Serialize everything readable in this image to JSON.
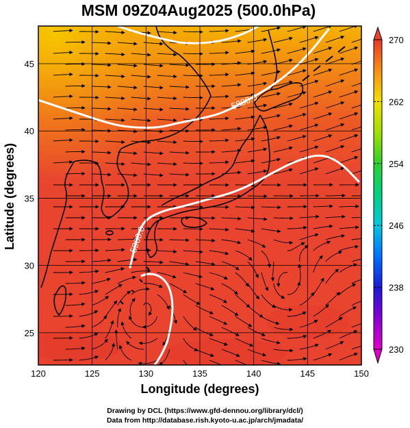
{
  "title": "MSM 09Z04Aug2025 (500.0hPa)",
  "x_axis": {
    "label": "Longitude (degrees)",
    "ticks": [
      "120",
      "125",
      "130",
      "135",
      "140",
      "145",
      "150"
    ]
  },
  "y_axis": {
    "label": "Latitude  (degrees)",
    "ticks": [
      "25",
      "30",
      "35",
      "40",
      "45"
    ]
  },
  "colorbar": {
    "ticks": [
      "230",
      "238",
      "246",
      "254",
      "262",
      "270"
    ],
    "min": 230,
    "max": 270
  },
  "contour_labels": {
    "upper": "5880.0",
    "lower": "5900.0"
  },
  "credits": {
    "line1": "Drawing by DCL (https://www.gfd-dennou.org/library/dcl/)",
    "line2": "Data from http://database.rish.kyoto-u.ac.jp/arch/jmadata/"
  },
  "colors": {
    "warm_fill": "#e8452f",
    "north_fill": "#f07a1e",
    "far_north_fill": "#f5b400",
    "contour": "#ffffff",
    "coast": "#000000"
  },
  "chart_data": {
    "type": "heatmap",
    "variable": "500.0hPa",
    "xlim": [
      120,
      150
    ],
    "ylim": [
      22.6,
      47.8
    ],
    "clim": [
      230,
      270
    ],
    "contours": [
      {
        "label": "5880.0",
        "lon": [
          120,
          123,
          126,
          128,
          131,
          133,
          135,
          137,
          139,
          141,
          143,
          145,
          147
        ],
        "lat": [
          42.3,
          41.5,
          40.7,
          40.3,
          40.2,
          40.6,
          40.9,
          41.3,
          42.1,
          43.0,
          44.1,
          45.6,
          47.6
        ]
      },
      {
        "label": "5900.0",
        "lon": [
          128.5,
          128.9,
          129.4,
          130.1,
          131.7,
          133.5,
          135.7,
          138,
          140,
          142,
          144,
          146.2,
          148,
          149.8
        ],
        "lat": [
          29.8,
          31.2,
          32.7,
          33.5,
          34.1,
          34.4,
          34.9,
          35.4,
          36.1,
          37.0,
          37.8,
          38.3,
          37.7,
          36.2
        ]
      }
    ]
  }
}
